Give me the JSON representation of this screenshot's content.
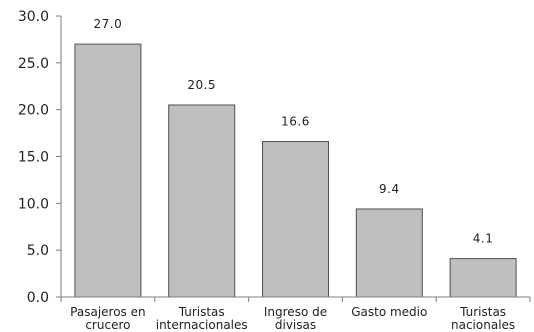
{
  "chart_data": {
    "type": "bar",
    "categories": [
      [
        "Pasajeros en",
        "crucero"
      ],
      [
        "Turistas",
        "internacionales"
      ],
      [
        "Ingreso de",
        "divisas"
      ],
      [
        "Gasto medio"
      ],
      [
        "Turistas",
        "nacionales"
      ]
    ],
    "values": [
      27.0,
      20.5,
      16.6,
      9.4,
      4.1
    ],
    "value_labels": [
      "27.0",
      "20.5",
      "16.6",
      "9.4",
      "4.1"
    ],
    "ylim": [
      0,
      30
    ],
    "yticks": [
      0,
      5,
      10,
      15,
      20,
      25,
      30
    ],
    "ytick_labels": [
      "0.0",
      "5.0",
      "10.0",
      "15.0",
      "20.0",
      "25.0",
      "30.0"
    ],
    "grid": false,
    "bar_color": "#bfbfbf",
    "bar_edge_color": "#505050",
    "axis_color": "#7f7f7f"
  }
}
